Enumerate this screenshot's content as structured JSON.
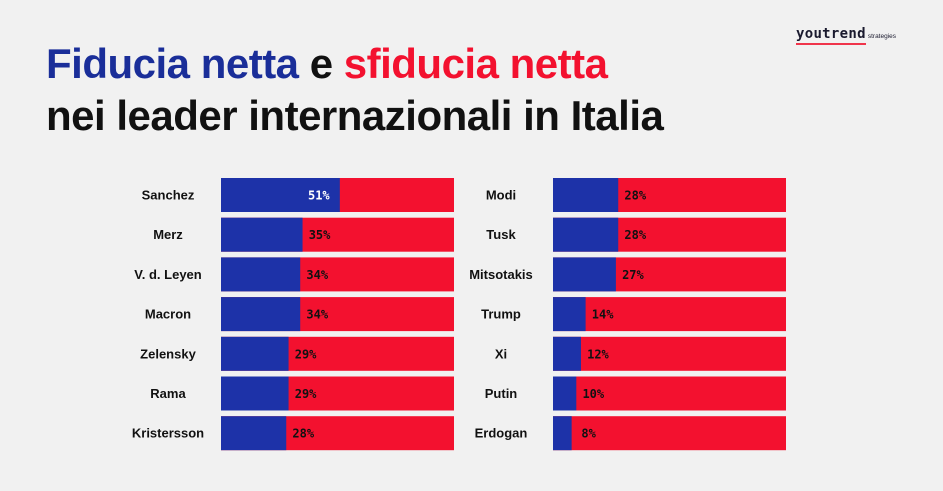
{
  "brand": {
    "name": "youtrend",
    "suffix": "strategies"
  },
  "title": {
    "part1": "Fiducia netta",
    "connector": "e",
    "part2": "sfiducia netta",
    "line2": "nei leader internazionali in Italia"
  },
  "colors": {
    "trust": "#1d32a8",
    "distrust": "#f3112f",
    "label_on_trust": "#ffffff",
    "label_on_distrust": "#111111"
  },
  "chart_data": [
    {
      "type": "bar",
      "orientation": "horizontal",
      "stacked": true,
      "series": [
        {
          "name": "Fiducia netta",
          "color": "#1d32a8"
        },
        {
          "name": "Sfiducia netta",
          "color": "#f3112f"
        }
      ],
      "categories": [
        "Sanchez",
        "Merz",
        "V. d. Leyen",
        "Macron",
        "Zelensky",
        "Rama",
        "Kristersson"
      ],
      "values": [
        51,
        35,
        34,
        34,
        29,
        29,
        28
      ],
      "labels": [
        "51%",
        "35%",
        "34%",
        "34%",
        "29%",
        "29%",
        "28%"
      ],
      "xlim": [
        0,
        100
      ]
    },
    {
      "type": "bar",
      "orientation": "horizontal",
      "stacked": true,
      "series": [
        {
          "name": "Fiducia netta",
          "color": "#1d32a8"
        },
        {
          "name": "Sfiducia netta",
          "color": "#f3112f"
        }
      ],
      "categories": [
        "Modi",
        "Tusk",
        "Mitsotakis",
        "Trump",
        "Xi",
        "Putin",
        "Erdogan"
      ],
      "values": [
        28,
        28,
        27,
        14,
        12,
        10,
        8
      ],
      "labels": [
        "28%",
        "28%",
        "27%",
        "14%",
        "12%",
        "10%",
        "8%"
      ],
      "xlim": [
        0,
        100
      ]
    }
  ]
}
